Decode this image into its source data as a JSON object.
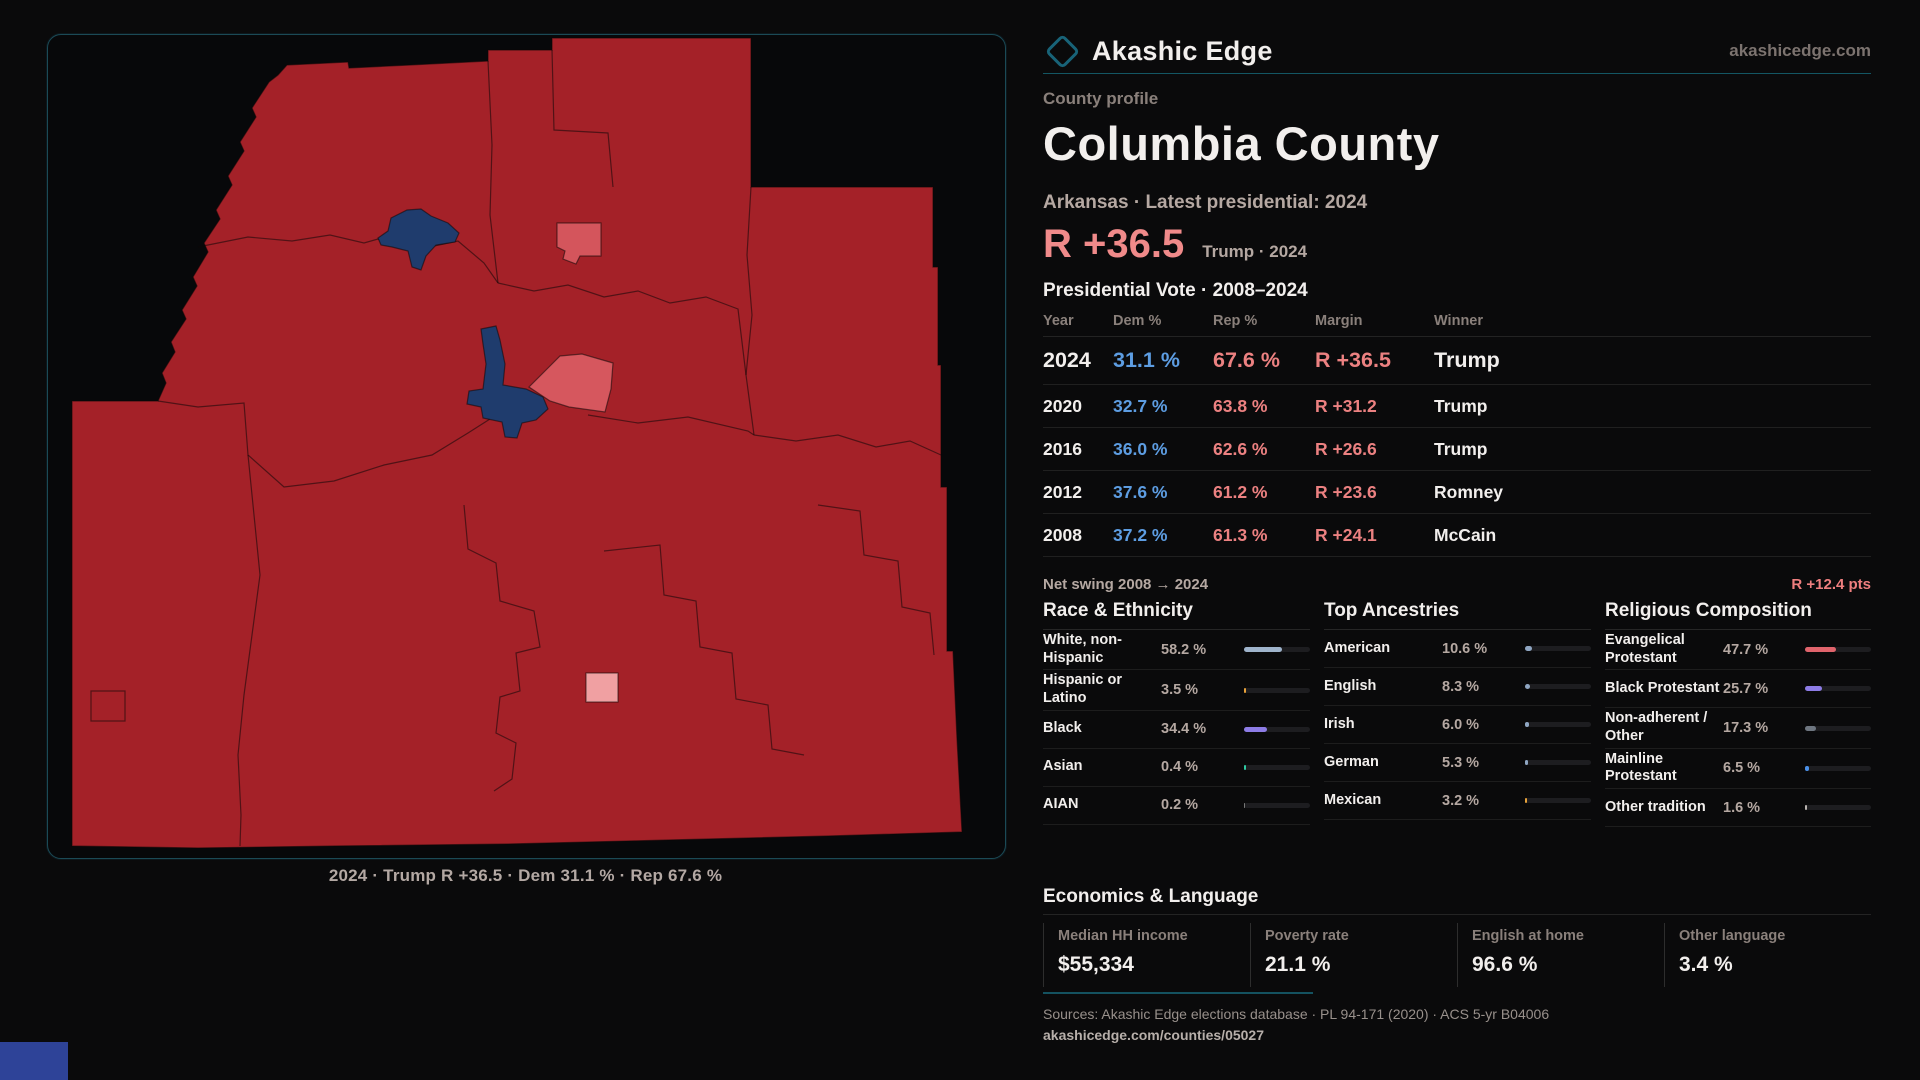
{
  "brand": {
    "name": "Akashic Edge",
    "site": "akashicedge.com"
  },
  "header": {
    "kicker": "County profile",
    "title": "Columbia County",
    "subtitle": "Arkansas · Latest presidential: 2024"
  },
  "headline": {
    "margin": "R +36.5",
    "context": "Trump · 2024"
  },
  "map": {
    "caption": "2024 · Trump R +36.5 · Dem 31.1 % · Rep 67.6 %",
    "colors": {
      "republican": "#a42128",
      "democrat": "#1f3c6d",
      "lean_republican": "#d4555c",
      "light_republican": "#f0a0a2"
    }
  },
  "table": {
    "title": "Presidential Vote · 2008–2024",
    "columns": [
      "Year",
      "Dem %",
      "Rep %",
      "Margin",
      "Winner"
    ],
    "rows": [
      {
        "year": "2024",
        "dem": "31.1 %",
        "rep": "67.6 %",
        "margin": "R +36.5",
        "winner": "Trump",
        "highlight": true
      },
      {
        "year": "2020",
        "dem": "32.7 %",
        "rep": "63.8 %",
        "margin": "R +31.2",
        "winner": "Trump",
        "highlight": false
      },
      {
        "year": "2016",
        "dem": "36.0 %",
        "rep": "62.6 %",
        "margin": "R +26.6",
        "winner": "Trump",
        "highlight": false
      },
      {
        "year": "2012",
        "dem": "37.6 %",
        "rep": "61.2 %",
        "margin": "R +23.6",
        "winner": "Romney",
        "highlight": false
      },
      {
        "year": "2008",
        "dem": "37.2 %",
        "rep": "61.3 %",
        "margin": "R +24.1",
        "winner": "McCain",
        "highlight": false
      }
    ]
  },
  "net_swing": {
    "label": "Net swing 2008 → 2024",
    "value": "R +12.4 pts"
  },
  "demographics": [
    {
      "title": "Race & Ethnicity",
      "rows": [
        {
          "label": "White, non-Hispanic",
          "value": "58.2 %",
          "pct": 58.2,
          "color": "#9fb4cc"
        },
        {
          "label": "Hispanic or Latino",
          "value": "3.5 %",
          "pct": 3.5,
          "color": "#e8a23a"
        },
        {
          "label": "Black",
          "value": "34.4 %",
          "pct": 34.4,
          "color": "#8d7ce6"
        },
        {
          "label": "Asian",
          "value": "0.4 %",
          "pct": 0.4,
          "color": "#2fc9a2"
        },
        {
          "label": "AIAN",
          "value": "0.2 %",
          "pct": 0.2,
          "color": "#777777"
        }
      ]
    },
    {
      "title": "Top Ancestries",
      "rows": [
        {
          "label": "American",
          "value": "10.6 %",
          "pct": 10.6,
          "color": "#8fa6c2"
        },
        {
          "label": "English",
          "value": "8.3 %",
          "pct": 8.3,
          "color": "#8fa6c2"
        },
        {
          "label": "Irish",
          "value": "6.0 %",
          "pct": 6.0,
          "color": "#8fa6c2"
        },
        {
          "label": "German",
          "value": "5.3 %",
          "pct": 5.3,
          "color": "#8fa6c2"
        },
        {
          "label": "Mexican",
          "value": "3.2 %",
          "pct": 3.2,
          "color": "#e8a23a"
        }
      ]
    },
    {
      "title": "Religious Composition",
      "rows": [
        {
          "label": "Evangelical Protestant",
          "value": "47.7 %",
          "pct": 47.7,
          "color": "#e0646c"
        },
        {
          "label": "Black Protestant",
          "value": "25.7 %",
          "pct": 25.7,
          "color": "#8d7ce6"
        },
        {
          "label": "Non-adherent / Other",
          "value": "17.3 %",
          "pct": 17.3,
          "color": "#6e7680"
        },
        {
          "label": "Mainline Protestant",
          "value": "6.5 %",
          "pct": 6.5,
          "color": "#4a90e8"
        },
        {
          "label": "Other tradition",
          "value": "1.6 %",
          "pct": 1.6,
          "color": "#b9b4b0"
        }
      ]
    }
  ],
  "economics": {
    "title": "Economics & Language",
    "stats": [
      {
        "label": "Median HH income",
        "value": "$55,334"
      },
      {
        "label": "Poverty rate",
        "value": "21.1 %"
      },
      {
        "label": "English at home",
        "value": "96.6 %"
      },
      {
        "label": "Other language",
        "value": "3.4 %"
      }
    ]
  },
  "footer": {
    "sources": "Sources: Akashic Edge elections database · PL 94-171 (2020) · ACS 5-yr B04006",
    "permalink": "akashicedge.com/counties/05027"
  }
}
